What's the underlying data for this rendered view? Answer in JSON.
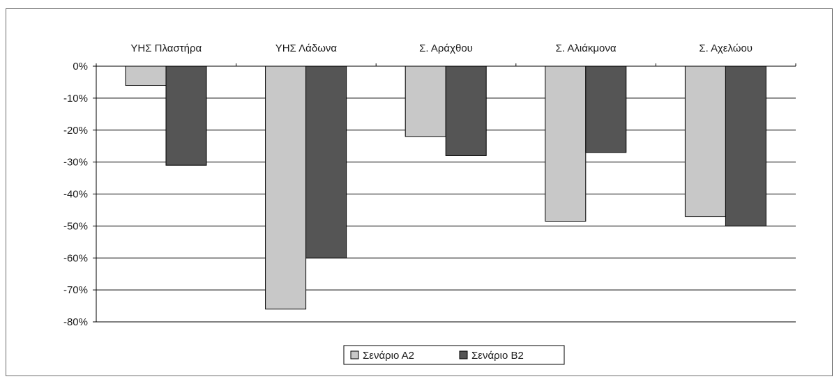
{
  "chart_data": {
    "type": "bar",
    "categories": [
      "ΥΗΣ Πλαστήρα",
      "ΥΗΣ Λάδωνα",
      "Σ. Αράχθου",
      "Σ. Αλιάκμονα",
      "Σ. Αχελώου"
    ],
    "series": [
      {
        "name": "Σενάριο Α2",
        "values": [
          -6,
          -76,
          -22,
          -48.5,
          -47
        ],
        "color": "#c8c8c8"
      },
      {
        "name": "Σενάριο Β2",
        "values": [
          -31,
          -60,
          -28,
          -27,
          -50
        ],
        "color": "#555555"
      }
    ],
    "ylim": [
      -80,
      0
    ],
    "yticks": [
      0,
      -10,
      -20,
      -30,
      -40,
      -50,
      -60,
      -70,
      -80
    ],
    "ytick_labels": [
      "0%",
      "-10%",
      "-20%",
      "-30%",
      "-40%",
      "-50%",
      "-60%",
      "-70%",
      "-80%"
    ],
    "category_axis_position": "top",
    "grid": true,
    "legend_position": "bottom-center",
    "title": "",
    "xlabel": "",
    "ylabel": ""
  }
}
